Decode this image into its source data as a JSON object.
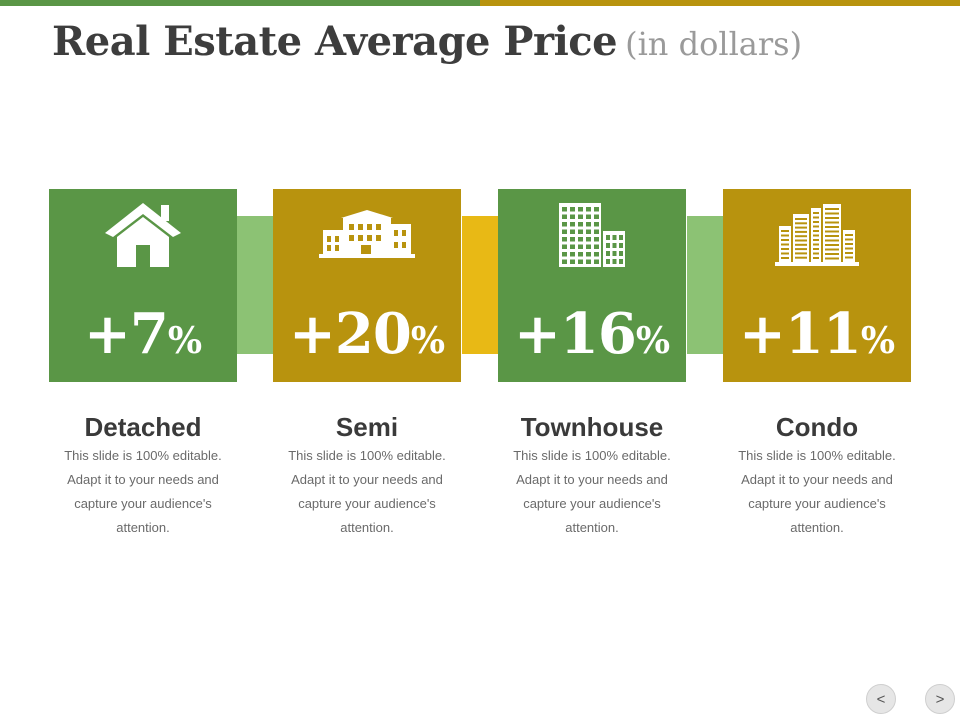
{
  "title": {
    "main": "Real Estate Average Price",
    "sub": "(in dollars)"
  },
  "colors": {
    "green": "#5a9646",
    "gold": "#b8930e",
    "light_green": "#8cc274",
    "yellow": "#e8b915",
    "topbar_left": "#5a9646",
    "topbar_right": "#b8930e"
  },
  "cards": [
    {
      "value": "+7",
      "pct": "%",
      "label": "Detached",
      "icon": "house-icon",
      "description": "This slide is 100% editable. Adapt it to your needs and capture your audience's attention."
    },
    {
      "value": "+20",
      "pct": "%",
      "label": "Semi",
      "icon": "building-icon",
      "description": "This slide is 100% editable. Adapt it to your needs and capture your audience's attention."
    },
    {
      "value": "+16",
      "pct": "%",
      "label": "Townhouse",
      "icon": "tower-icon",
      "description": "This slide is 100% editable. Adapt it to your needs and capture your audience's attention."
    },
    {
      "value": "+11",
      "pct": "%",
      "label": "Condo",
      "icon": "city-icon",
      "description": "This slide is 100% editable. Adapt it to your needs and capture your audience's attention."
    }
  ],
  "nav": {
    "prev": "<",
    "next": ">"
  }
}
